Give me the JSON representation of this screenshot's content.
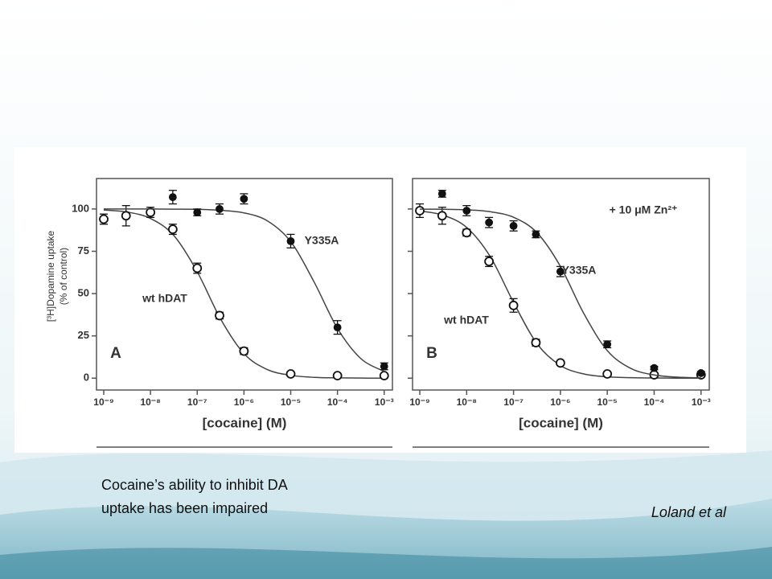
{
  "chart_data": [
    {
      "type": "line",
      "panel_label": "A",
      "xlabel": "[cocaine] (M)",
      "ylabel": [
        "[³H]Dopamine uptake",
        "(% of control)"
      ],
      "xscale": "log",
      "xlim": [
        7e-10,
        0.0015
      ],
      "ylim": [
        -7,
        118
      ],
      "show_ytick_labels": true,
      "xticks": [
        {
          "value": 1e-09,
          "label": "10⁻⁹"
        },
        {
          "value": 1e-08,
          "label": "10⁻⁸"
        },
        {
          "value": 1e-07,
          "label": "10⁻⁷"
        },
        {
          "value": 1e-06,
          "label": "10⁻⁶"
        },
        {
          "value": 1e-05,
          "label": "10⁻⁵"
        },
        {
          "value": 0.0001,
          "label": "10⁻⁴"
        },
        {
          "value": 0.001,
          "label": "10⁻³"
        }
      ],
      "yticks": [
        0,
        25,
        50,
        75,
        100
      ],
      "fit_x": [
        1e-09,
        3.16e-09,
        1e-08,
        3.16e-08,
        1e-07,
        3.16e-07,
        1e-06,
        3.16e-06,
        1e-05,
        3.16e-05,
        0.0001,
        0.000316,
        0.001
      ],
      "series": [
        {
          "name": "wt hDAT",
          "marker": "open",
          "color": "#111111",
          "x": [
            1e-09,
            3e-09,
            1e-08,
            3e-08,
            1e-07,
            3e-07,
            1e-06,
            1e-05,
            0.0001,
            0.001
          ],
          "values": [
            94,
            96,
            98,
            88,
            65,
            37,
            16,
            2.5,
            1.5,
            1.5
          ],
          "errors": [
            3,
            6,
            3,
            3,
            3,
            2,
            2,
            1,
            1,
            1
          ],
          "fit": [
            99.4,
            98.2,
            94.4,
            84.3,
            62.9,
            35.0,
            14.5,
            5.1,
            1.7,
            0.5,
            0.2,
            0.05,
            0.02
          ]
        },
        {
          "name": "Y335A",
          "marker": "filled",
          "color": "#111111",
          "x": [
            3e-08,
            1e-07,
            3e-07,
            1e-06,
            1e-05,
            0.0001,
            0.001
          ],
          "values": [
            107,
            98,
            100,
            106,
            81,
            30,
            7
          ],
          "errors": [
            4,
            2,
            3,
            3,
            4,
            4,
            2
          ],
          "fit": [
            100,
            100,
            100,
            99.9,
            99.8,
            99.2,
            97.7,
            93.0,
            80.7,
            56.9,
            29.4,
            11.6,
            4.0
          ]
        }
      ]
    },
    {
      "type": "line",
      "panel_label": "B",
      "xlabel": "[cocaine] (M)",
      "annotation": "+ 10 μM Zn²⁺",
      "xscale": "log",
      "xlim": [
        7e-10,
        0.0015
      ],
      "ylim": [
        -7,
        118
      ],
      "show_ytick_labels": false,
      "xticks": [
        {
          "value": 1e-09,
          "label": "10⁻⁹"
        },
        {
          "value": 1e-08,
          "label": "10⁻⁸"
        },
        {
          "value": 1e-07,
          "label": "10⁻⁷"
        },
        {
          "value": 1e-06,
          "label": "10⁻⁶"
        },
        {
          "value": 1e-05,
          "label": "10⁻⁵"
        },
        {
          "value": 0.0001,
          "label": "10⁻⁴"
        },
        {
          "value": 0.001,
          "label": "10⁻³"
        }
      ],
      "yticks": [
        0,
        25,
        50,
        75,
        100
      ],
      "fit_x": [
        1e-09,
        3.16e-09,
        1e-08,
        3.16e-08,
        1e-07,
        3.16e-07,
        1e-06,
        3.16e-06,
        1e-05,
        3.16e-05,
        0.0001,
        0.000316,
        0.001
      ],
      "series": [
        {
          "name": "wt hDAT",
          "marker": "open",
          "color": "#111111",
          "x": [
            1e-09,
            3e-09,
            1e-08,
            3e-08,
            1e-07,
            3e-07,
            1e-06,
            1e-05,
            0.0001,
            0.001
          ],
          "values": [
            99,
            96,
            86,
            69,
            43,
            21,
            9,
            2.5,
            2,
            2
          ],
          "errors": [
            4,
            5,
            2,
            3,
            4,
            2,
            1,
            1,
            1,
            1
          ],
          "fit": [
            98.8,
            96.3,
            89.1,
            72.0,
            44.8,
            20.4,
            7.5,
            2.5,
            0.8,
            0.3,
            0.1,
            0.03,
            0.01
          ]
        },
        {
          "name": "Y335A",
          "marker": "filled",
          "color": "#111111",
          "x": [
            3e-09,
            1e-08,
            3e-08,
            1e-07,
            3e-07,
            1e-06,
            1e-05,
            0.0001,
            0.001
          ],
          "values": [
            109,
            99,
            92,
            90,
            85,
            63,
            20,
            6,
            3
          ],
          "errors": [
            2,
            3,
            3,
            3,
            2,
            3,
            2,
            1,
            1
          ],
          "fit": [
            99.9,
            99.8,
            99.5,
            98.4,
            95.1,
            86.0,
            66.1,
            38.2,
            16.3,
            5.8,
            1.9,
            0.6,
            0.2
          ]
        }
      ]
    }
  ],
  "caption": [
    "Cocaine’s ability to inhibit DA",
    "uptake has been impaired"
  ],
  "citation": "Loland et al"
}
